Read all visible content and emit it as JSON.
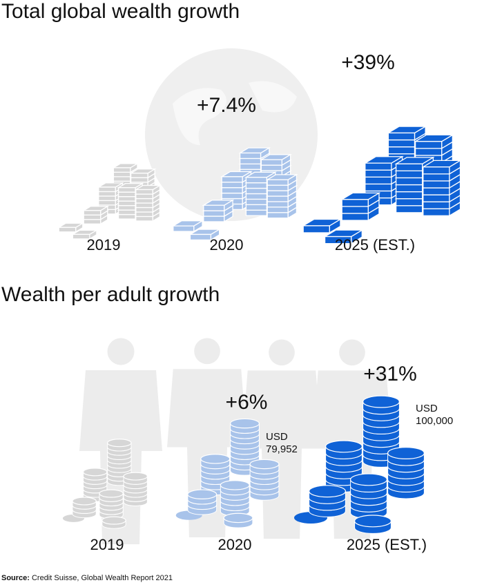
{
  "sections": [
    {
      "title": "Total global wealth growth",
      "items": [
        {
          "label": "2019",
          "color": "#d6d6d6"
        },
        {
          "label": "2020",
          "change": "+7.4%",
          "color": "#a8c3ea"
        },
        {
          "label": "2025 (EST.)",
          "change": "+39%",
          "color": "#0f62d6"
        }
      ]
    },
    {
      "title": "Wealth per adult growth",
      "items": [
        {
          "label": "2019",
          "color": "#d6d6d6"
        },
        {
          "label": "2020",
          "change": "+6%",
          "currency": "USD",
          "amount": "79,952",
          "color": "#a8c3ea"
        },
        {
          "label": "2025 (EST.)",
          "change": "+31%",
          "currency": "USD",
          "amount": "100,000",
          "color": "#0f62d6"
        }
      ]
    }
  ],
  "source": {
    "label": "Source:",
    "text": "Credit Suisse, Global Wealth Report 2021"
  }
}
